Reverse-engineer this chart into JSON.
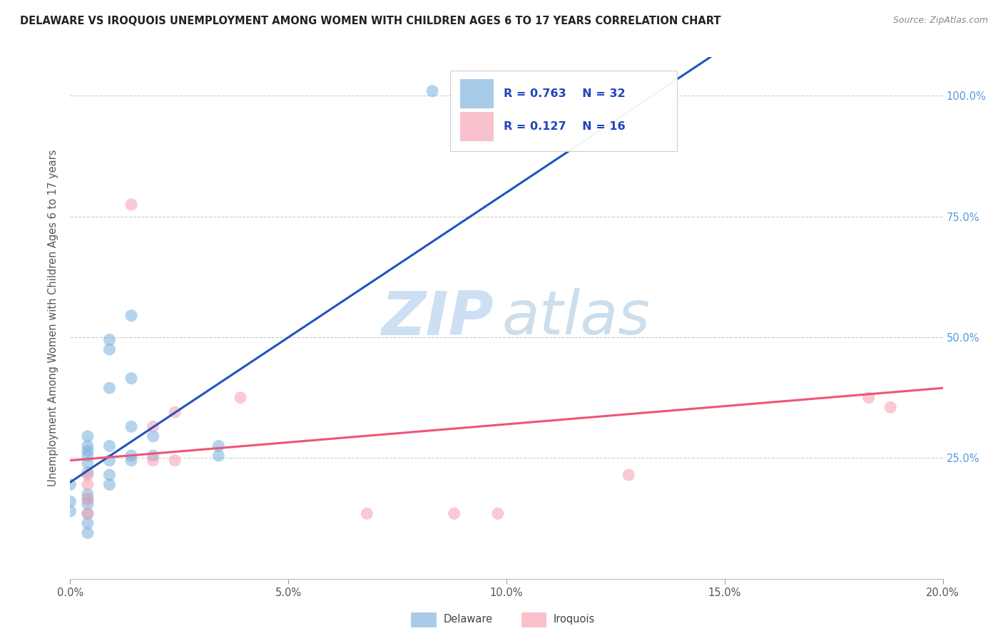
{
  "title": "DELAWARE VS IROQUOIS UNEMPLOYMENT AMONG WOMEN WITH CHILDREN AGES 6 TO 17 YEARS CORRELATION CHART",
  "source": "Source: ZipAtlas.com",
  "ylabel": "Unemployment Among Women with Children Ages 6 to 17 years",
  "legend_r_n": [
    {
      "R": "0.763",
      "N": "32",
      "color": "#7ab0de"
    },
    {
      "R": "0.127",
      "N": "16",
      "color": "#f5a0b0"
    }
  ],
  "xlim": [
    0.0,
    0.2
  ],
  "ylim": [
    0.0,
    1.08
  ],
  "xtick_labels": [
    "0.0%",
    "5.0%",
    "10.0%",
    "15.0%",
    "20.0%"
  ],
  "xtick_values": [
    0.0,
    0.05,
    0.1,
    0.15,
    0.2
  ],
  "ytick_values": [
    0.0,
    0.25,
    0.5,
    0.75,
    1.0
  ],
  "ytick_labels_right": [
    "",
    "25.0%",
    "50.0%",
    "75.0%",
    "100.0%"
  ],
  "grid_color": "#cccccc",
  "background_color": "#ffffff",
  "delaware_color": "#7ab0de",
  "iroquois_color": "#f5a0b0",
  "delaware_line_color": "#2255bb",
  "iroquois_line_color": "#ee5577",
  "delaware_points": [
    [
      0.0,
      0.195
    ],
    [
      0.0,
      0.16
    ],
    [
      0.0,
      0.14
    ],
    [
      0.004,
      0.295
    ],
    [
      0.004,
      0.275
    ],
    [
      0.004,
      0.265
    ],
    [
      0.004,
      0.255
    ],
    [
      0.004,
      0.24
    ],
    [
      0.004,
      0.22
    ],
    [
      0.004,
      0.175
    ],
    [
      0.004,
      0.165
    ],
    [
      0.004,
      0.155
    ],
    [
      0.004,
      0.135
    ],
    [
      0.004,
      0.115
    ],
    [
      0.004,
      0.095
    ],
    [
      0.009,
      0.495
    ],
    [
      0.009,
      0.475
    ],
    [
      0.009,
      0.395
    ],
    [
      0.009,
      0.275
    ],
    [
      0.009,
      0.245
    ],
    [
      0.009,
      0.215
    ],
    [
      0.009,
      0.195
    ],
    [
      0.014,
      0.545
    ],
    [
      0.014,
      0.415
    ],
    [
      0.014,
      0.315
    ],
    [
      0.014,
      0.255
    ],
    [
      0.014,
      0.245
    ],
    [
      0.019,
      0.295
    ],
    [
      0.019,
      0.255
    ],
    [
      0.034,
      0.275
    ],
    [
      0.034,
      0.255
    ],
    [
      0.083,
      1.01
    ]
  ],
  "iroquois_points": [
    [
      0.004,
      0.215
    ],
    [
      0.004,
      0.195
    ],
    [
      0.004,
      0.165
    ],
    [
      0.004,
      0.135
    ],
    [
      0.014,
      0.775
    ],
    [
      0.019,
      0.315
    ],
    [
      0.019,
      0.245
    ],
    [
      0.024,
      0.345
    ],
    [
      0.024,
      0.245
    ],
    [
      0.039,
      0.375
    ],
    [
      0.068,
      0.135
    ],
    [
      0.088,
      0.135
    ],
    [
      0.098,
      0.135
    ],
    [
      0.128,
      0.215
    ],
    [
      0.183,
      0.375
    ],
    [
      0.188,
      0.355
    ]
  ],
  "delaware_trendline": [
    [
      0.0,
      0.2
    ],
    [
      0.2,
      1.4
    ]
  ],
  "iroquois_trendline": [
    [
      0.0,
      0.245
    ],
    [
      0.2,
      0.395
    ]
  ]
}
